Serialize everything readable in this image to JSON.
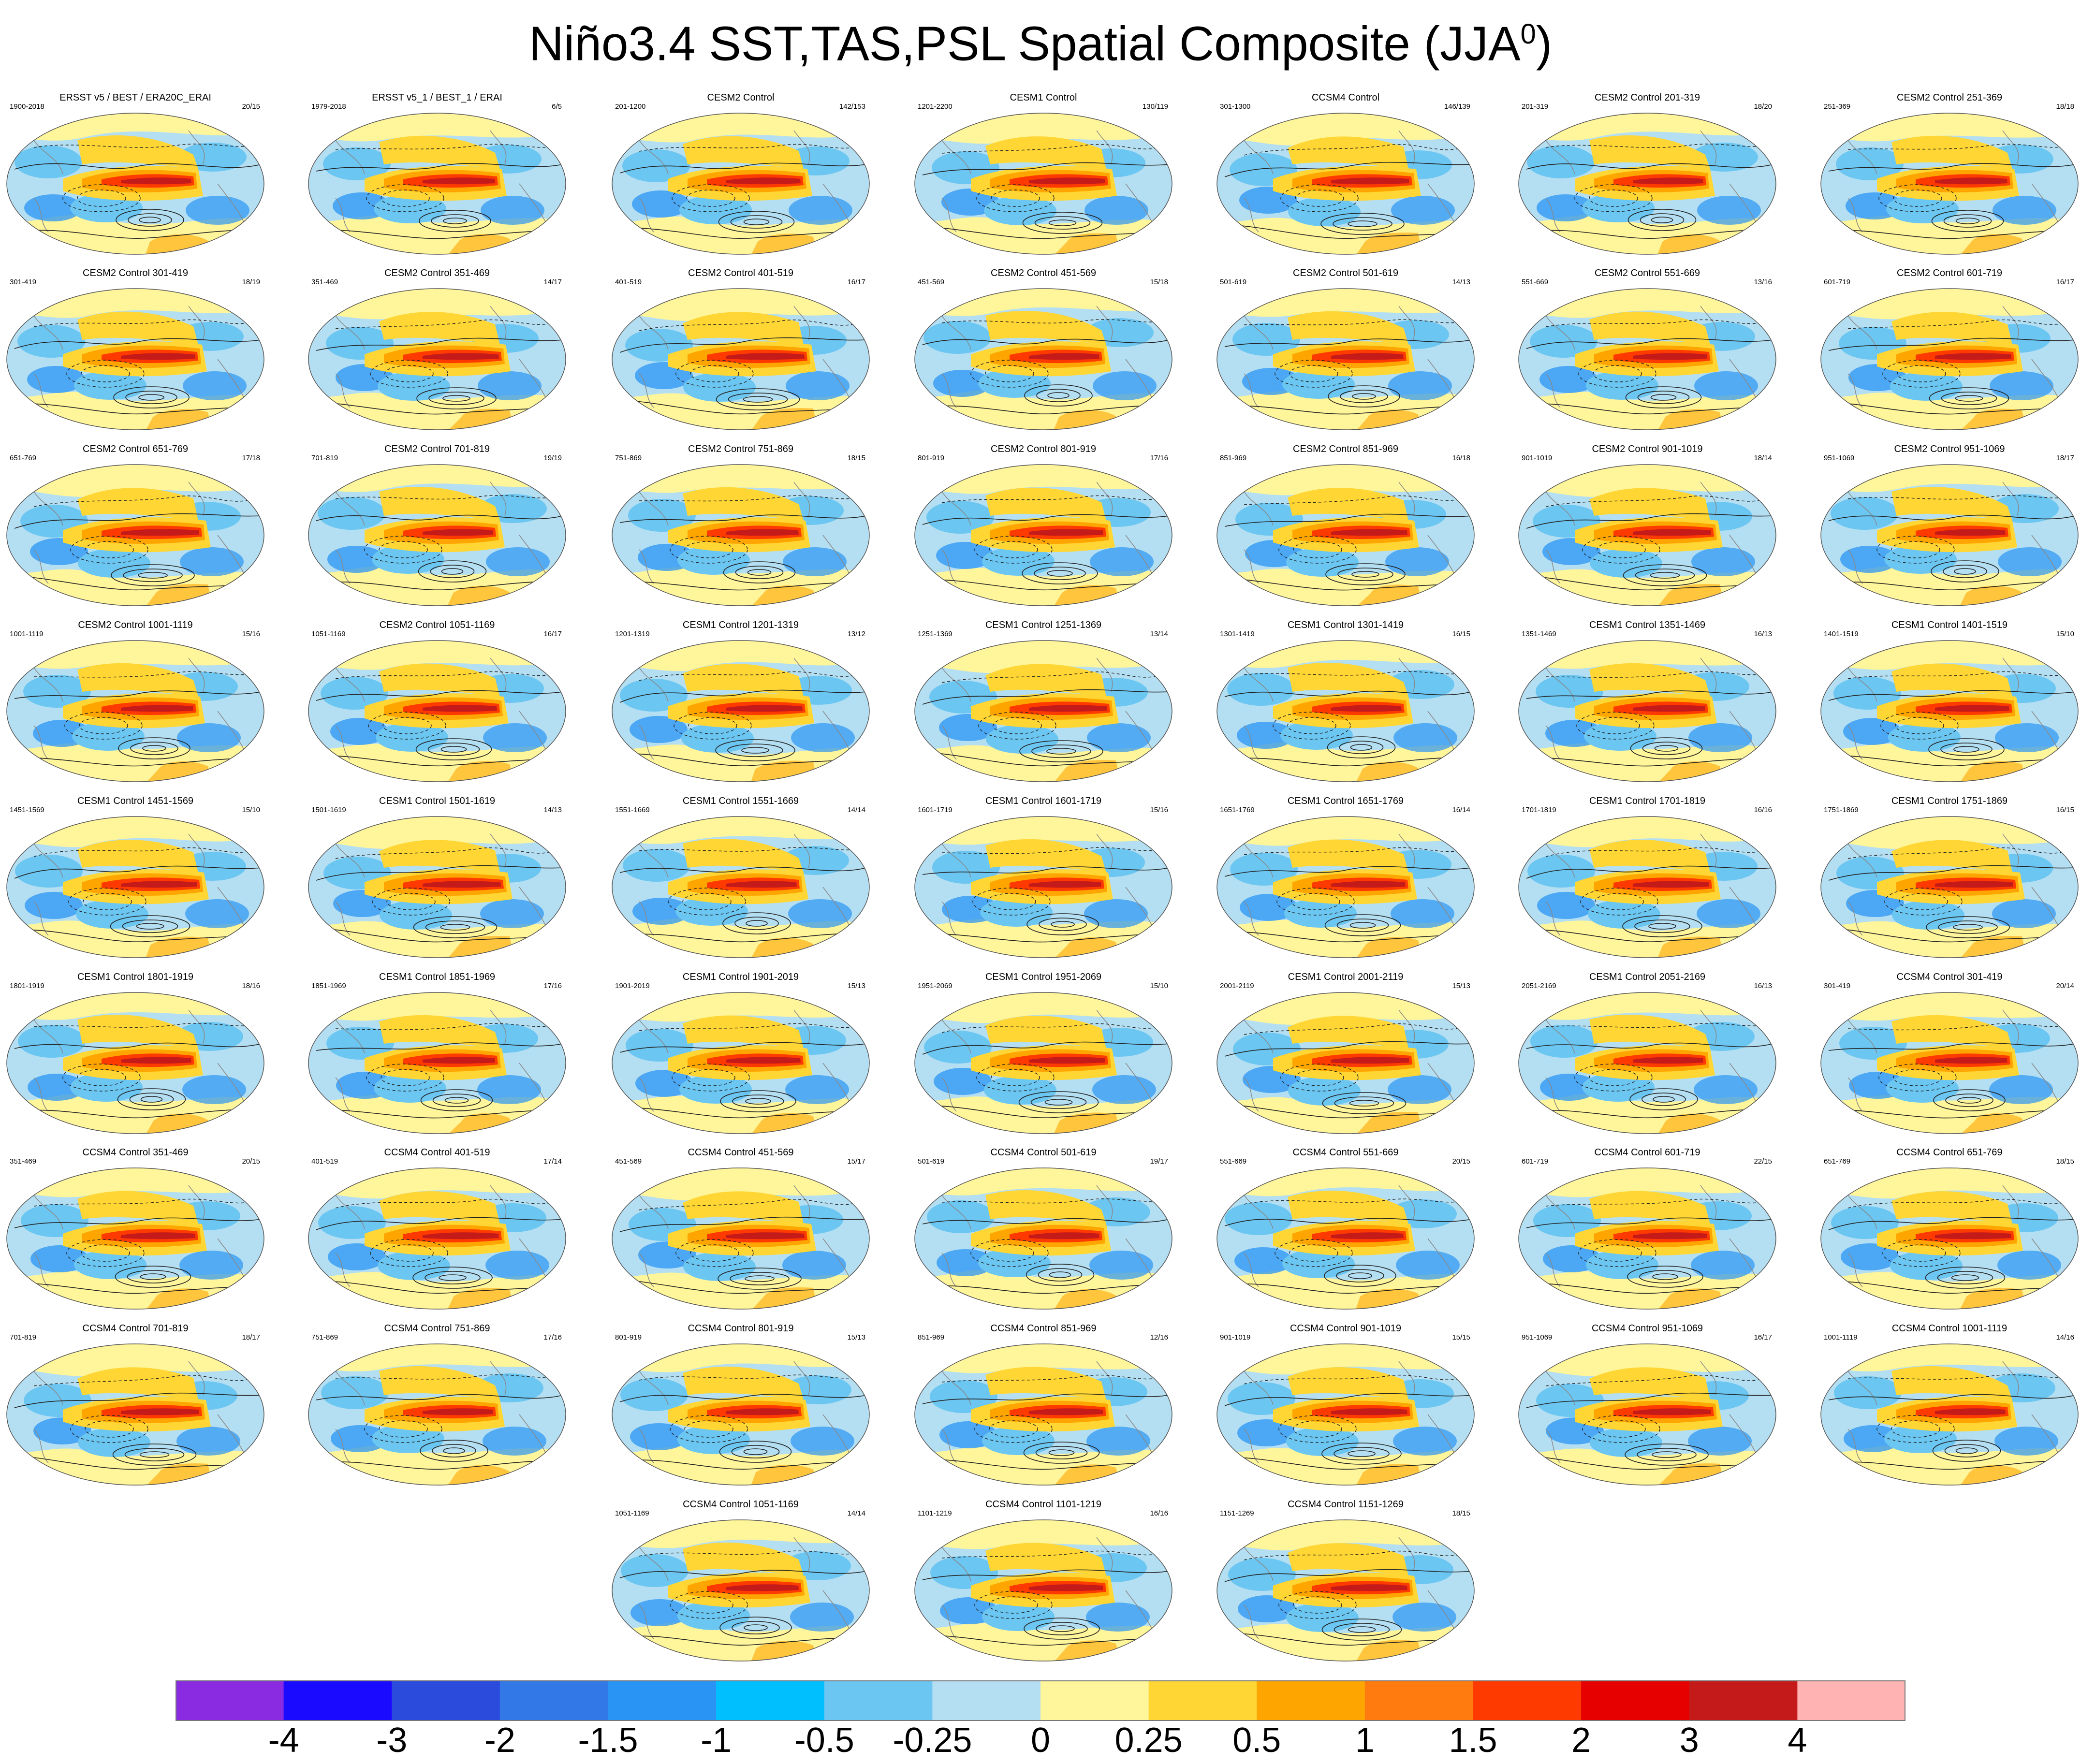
{
  "title": {
    "text": "Niño3.4 SST,TAS,PSL Spatial Composite (JJA",
    "sup": "0",
    "close": ")"
  },
  "panels": [
    {
      "title": "ERSST v5 / BEST / ERA20C_ERAI",
      "years": "1900-2018",
      "count": "20/15"
    },
    {
      "title": "ERSST v5_1 / BEST_1 / ERAI",
      "years": "1979-2018",
      "count": "6/5"
    },
    {
      "title": "CESM2 Control",
      "years": "201-1200",
      "count": "142/153"
    },
    {
      "title": "CESM1 Control",
      "years": "1201-2200",
      "count": "130/119"
    },
    {
      "title": "CCSM4 Control",
      "years": "301-1300",
      "count": "146/139"
    },
    {
      "title": "CESM2 Control 201-319",
      "years": "201-319",
      "count": "18/20"
    },
    {
      "title": "CESM2 Control 251-369",
      "years": "251-369",
      "count": "18/18"
    },
    {
      "title": "CESM2 Control 301-419",
      "years": "301-419",
      "count": "18/19"
    },
    {
      "title": "CESM2 Control 351-469",
      "years": "351-469",
      "count": "14/17"
    },
    {
      "title": "CESM2 Control 401-519",
      "years": "401-519",
      "count": "16/17"
    },
    {
      "title": "CESM2 Control 451-569",
      "years": "451-569",
      "count": "15/18"
    },
    {
      "title": "CESM2 Control 501-619",
      "years": "501-619",
      "count": "14/13"
    },
    {
      "title": "CESM2 Control 551-669",
      "years": "551-669",
      "count": "13/16"
    },
    {
      "title": "CESM2 Control 601-719",
      "years": "601-719",
      "count": "16/17"
    },
    {
      "title": "CESM2 Control 651-769",
      "years": "651-769",
      "count": "17/18"
    },
    {
      "title": "CESM2 Control 701-819",
      "years": "701-819",
      "count": "19/19"
    },
    {
      "title": "CESM2 Control 751-869",
      "years": "751-869",
      "count": "18/15"
    },
    {
      "title": "CESM2 Control 801-919",
      "years": "801-919",
      "count": "17/16"
    },
    {
      "title": "CESM2 Control 851-969",
      "years": "851-969",
      "count": "16/18"
    },
    {
      "title": "CESM2 Control 901-1019",
      "years": "901-1019",
      "count": "18/14"
    },
    {
      "title": "CESM2 Control 951-1069",
      "years": "951-1069",
      "count": "18/17"
    },
    {
      "title": "CESM2 Control 1001-1119",
      "years": "1001-1119",
      "count": "15/16"
    },
    {
      "title": "CESM2 Control 1051-1169",
      "years": "1051-1169",
      "count": "16/17"
    },
    {
      "title": "CESM1 Control 1201-1319",
      "years": "1201-1319",
      "count": "13/12"
    },
    {
      "title": "CESM1 Control 1251-1369",
      "years": "1251-1369",
      "count": "13/14"
    },
    {
      "title": "CESM1 Control 1301-1419",
      "years": "1301-1419",
      "count": "16/15"
    },
    {
      "title": "CESM1 Control 1351-1469",
      "years": "1351-1469",
      "count": "16/13"
    },
    {
      "title": "CESM1 Control 1401-1519",
      "years": "1401-1519",
      "count": "15/10"
    },
    {
      "title": "CESM1 Control 1451-1569",
      "years": "1451-1569",
      "count": "15/10"
    },
    {
      "title": "CESM1 Control 1501-1619",
      "years": "1501-1619",
      "count": "14/13"
    },
    {
      "title": "CESM1 Control 1551-1669",
      "years": "1551-1669",
      "count": "14/14"
    },
    {
      "title": "CESM1 Control 1601-1719",
      "years": "1601-1719",
      "count": "15/16"
    },
    {
      "title": "CESM1 Control 1651-1769",
      "years": "1651-1769",
      "count": "16/14"
    },
    {
      "title": "CESM1 Control 1701-1819",
      "years": "1701-1819",
      "count": "16/16"
    },
    {
      "title": "CESM1 Control 1751-1869",
      "years": "1751-1869",
      "count": "16/15"
    },
    {
      "title": "CESM1 Control 1801-1919",
      "years": "1801-1919",
      "count": "18/16"
    },
    {
      "title": "CESM1 Control 1851-1969",
      "years": "1851-1969",
      "count": "17/16"
    },
    {
      "title": "CESM1 Control 1901-2019",
      "years": "1901-2019",
      "count": "15/13"
    },
    {
      "title": "CESM1 Control 1951-2069",
      "years": "1951-2069",
      "count": "15/10"
    },
    {
      "title": "CESM1 Control 2001-2119",
      "years": "2001-2119",
      "count": "15/13"
    },
    {
      "title": "CESM1 Control 2051-2169",
      "years": "2051-2169",
      "count": "16/13"
    },
    {
      "title": "CCSM4 Control 301-419",
      "years": "301-419",
      "count": "20/14"
    },
    {
      "title": "CCSM4 Control 351-469",
      "years": "351-469",
      "count": "20/15"
    },
    {
      "title": "CCSM4 Control 401-519",
      "years": "401-519",
      "count": "17/14"
    },
    {
      "title": "CCSM4 Control 451-569",
      "years": "451-569",
      "count": "15/17"
    },
    {
      "title": "CCSM4 Control 501-619",
      "years": "501-619",
      "count": "19/17"
    },
    {
      "title": "CCSM4 Control 551-669",
      "years": "551-669",
      "count": "20/15"
    },
    {
      "title": "CCSM4 Control 601-719",
      "years": "601-719",
      "count": "22/15"
    },
    {
      "title": "CCSM4 Control 651-769",
      "years": "651-769",
      "count": "18/15"
    },
    {
      "title": "CCSM4 Control 701-819",
      "years": "701-819",
      "count": "18/17"
    },
    {
      "title": "CCSM4 Control 751-869",
      "years": "751-869",
      "count": "17/16"
    },
    {
      "title": "CCSM4 Control 801-919",
      "years": "801-919",
      "count": "15/13"
    },
    {
      "title": "CCSM4 Control 851-969",
      "years": "851-969",
      "count": "12/16"
    },
    {
      "title": "CCSM4 Control 901-1019",
      "years": "901-1019",
      "count": "15/15"
    },
    {
      "title": "CCSM4 Control 951-1069",
      "years": "951-1069",
      "count": "16/17"
    },
    {
      "title": "CCSM4 Control 1001-1119",
      "years": "1001-1119",
      "count": "14/16"
    },
    {
      "title": "CCSM4 Control 1051-1169",
      "years": "1051-1169",
      "count": "14/14"
    },
    {
      "title": "CCSM4 Control 1101-1219",
      "years": "1101-1219",
      "count": "16/16"
    },
    {
      "title": "CCSM4 Control 1151-1269",
      "years": "1151-1269",
      "count": "18/15"
    }
  ],
  "colorbar": {
    "labels": [
      "-4",
      "-3",
      "-2",
      "-1.5",
      "-1",
      "-0.5",
      "-0.25",
      "0",
      "0.25",
      "0.5",
      "1",
      "1.5",
      "2",
      "3",
      "4"
    ],
    "colors": [
      "#8a2be2",
      "#1a0aff",
      "#2b4bdc",
      "#3278e6",
      "#2a94f4",
      "#00bfff",
      "#6cc6f2",
      "#b4dff2",
      "#fff59a",
      "#ffd633",
      "#ffa500",
      "#ff7b0f",
      "#ff3a00",
      "#e60000",
      "#c41a1a",
      "#ffb3b3"
    ]
  },
  "map_colors": {
    "ocean_base": "#b4dff2",
    "neg_strong": "#2a94f4",
    "neg_weak": "#6cc6f2",
    "pos_weak": "#fff59a",
    "pos_mid": "#ffd633",
    "pos_strong": "#ffa500",
    "tongue_outer": "#ff3a00",
    "tongue_core": "#c41a1a",
    "contour": "#222222",
    "coast": "#888888"
  }
}
